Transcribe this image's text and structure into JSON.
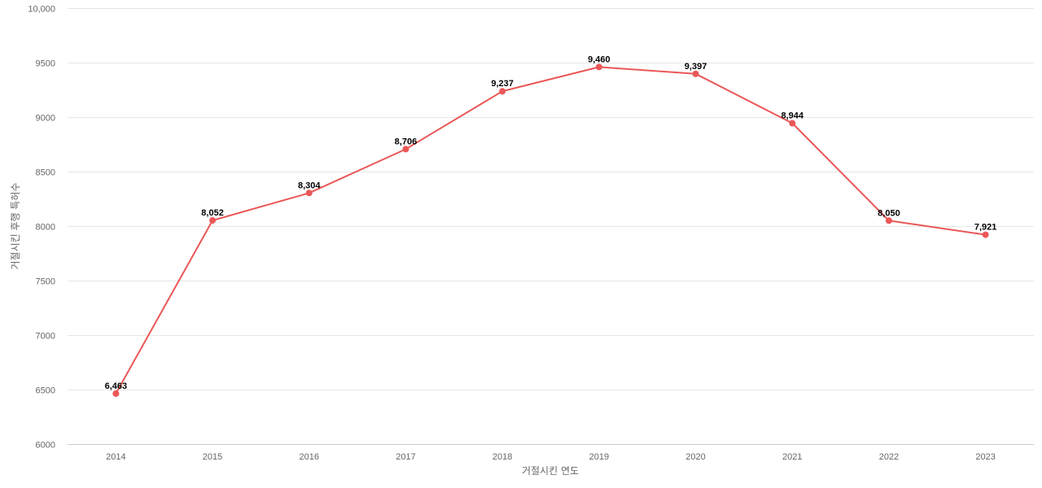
{
  "chart_data": {
    "type": "line",
    "title": "",
    "xlabel": "거절시킨 연도",
    "ylabel": "거절시킨 후행 특허수",
    "categories": [
      "2014",
      "2015",
      "2016",
      "2017",
      "2018",
      "2019",
      "2020",
      "2021",
      "2022",
      "2023"
    ],
    "values": [
      6463,
      8052,
      8304,
      8706,
      9237,
      9460,
      9397,
      8944,
      8050,
      7921
    ],
    "data_labels": [
      "6,463",
      "8,052",
      "8,304",
      "8,706",
      "9,237",
      "9,460",
      "9,397",
      "8,944",
      "8,050",
      "7,921"
    ],
    "ylim": [
      6000,
      10000
    ],
    "yticks": [
      6000,
      6500,
      7000,
      7500,
      8000,
      8500,
      9000,
      9500,
      10000
    ],
    "ytick_labels": [
      "6000",
      "6500",
      "7000",
      "7500",
      "8000",
      "8500",
      "9000",
      "9500",
      "10,000"
    ],
    "grid": true,
    "legend": "none",
    "color": "#eb5757"
  }
}
